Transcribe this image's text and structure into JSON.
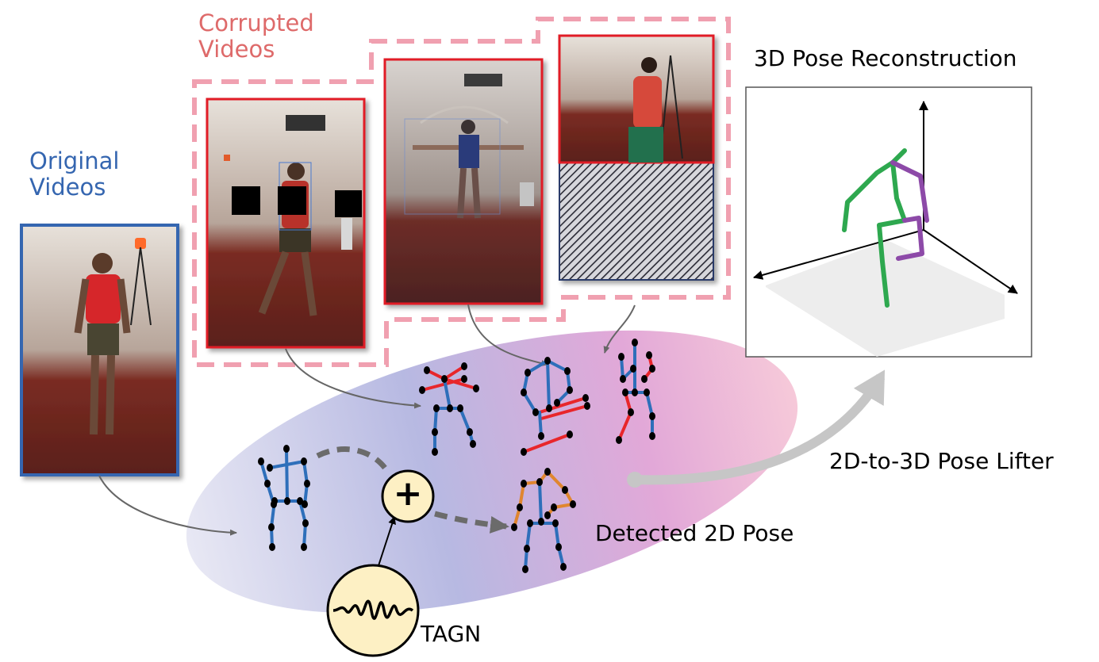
{
  "labels": {
    "original_line1": "Original",
    "original_line2": "Videos",
    "corrupted_line1": "Corrupted",
    "corrupted_line2": "Videos",
    "reconstruction": "3D Pose Reconstruction",
    "lifter": "2D-to-3D Pose Lifter",
    "detected": "Detected 2D Pose",
    "tagn": "TAGN",
    "plus": "+"
  },
  "colors": {
    "original_blue": "#3566b0",
    "corrupted_pink": "#f0a0b0",
    "corrupted_text": "#de6a6a",
    "frame_red": "#e11f26",
    "joint": "#000000",
    "bone_blue": "#2e6fba",
    "bone_red": "#e8262b",
    "bone_orange": "#e0862f",
    "pose3d_green": "#2ea84f",
    "pose3d_purple": "#8d4aa8",
    "flow_arrow": "#c6c6c6",
    "tagn_fill": "#fdf0c4"
  },
  "icons": {
    "plus": "plus-circle-icon",
    "tagn": "waveform-icon"
  }
}
